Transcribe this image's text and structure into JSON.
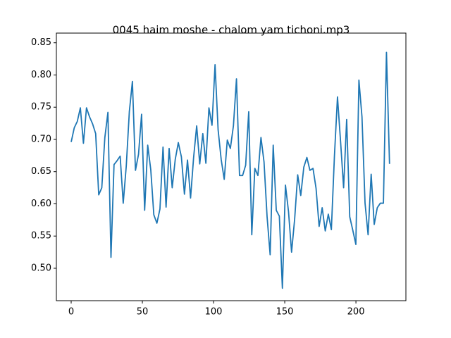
{
  "chart_data": {
    "type": "line",
    "title": "0045 haim moshe - chalom yam tichoni.mp3",
    "x": [
      0,
      2.15,
      4.3,
      6.45,
      8.6,
      10.75,
      12.9,
      15.05,
      17.2,
      19.35,
      21.5,
      23.65,
      25.8,
      27.95,
      30.1,
      32.25,
      34.4,
      36.55,
      38.7,
      40.85,
      43,
      45.15,
      47.3,
      49.45,
      51.6,
      53.75,
      55.9,
      58.05,
      60.2,
      62.35,
      64.5,
      66.65,
      68.8,
      70.95,
      73.1,
      75.25,
      77.4,
      79.55,
      81.7,
      83.85,
      86,
      88.15,
      90.3,
      92.45,
      94.6,
      96.75,
      98.9,
      101.05,
      103.2,
      105.35,
      107.5,
      109.65,
      111.8,
      113.95,
      116.1,
      118.25,
      120.4,
      122.55,
      124.7,
      126.85,
      129,
      131.15,
      133.3,
      135.45,
      137.6,
      139.75,
      141.9,
      144.05,
      146.2,
      148.35,
      150.5,
      152.65,
      154.8,
      156.95,
      159.1,
      161.25,
      163.4,
      165.55,
      167.7,
      169.85,
      172,
      174.15,
      176.3,
      178.45,
      180.6,
      182.75,
      184.9,
      187.05,
      189.2,
      191.35,
      193.5,
      195.65,
      197.8,
      199.95,
      202.1,
      204.25,
      206.4,
      208.55,
      210.7,
      212.85,
      215,
      217.15,
      219.3,
      221.45,
      223.6
    ],
    "series": [
      {
        "color": "#1f77b4",
        "values": [
          0.696,
          0.718,
          0.728,
          0.749,
          0.694,
          0.749,
          0.735,
          0.724,
          0.709,
          0.614,
          0.625,
          0.703,
          0.742,
          0.517,
          0.661,
          0.667,
          0.674,
          0.601,
          0.659,
          0.743,
          0.79,
          0.652,
          0.677,
          0.739,
          0.59,
          0.691,
          0.653,
          0.583,
          0.57,
          0.592,
          0.688,
          0.595,
          0.686,
          0.625,
          0.669,
          0.695,
          0.673,
          0.615,
          0.668,
          0.609,
          0.672,
          0.721,
          0.662,
          0.709,
          0.663,
          0.749,
          0.722,
          0.816,
          0.715,
          0.669,
          0.638,
          0.699,
          0.686,
          0.721,
          0.794,
          0.644,
          0.644,
          0.66,
          0.743,
          0.552,
          0.655,
          0.644,
          0.703,
          0.665,
          0.58,
          0.521,
          0.691,
          0.59,
          0.581,
          0.469,
          0.629,
          0.588,
          0.525,
          0.576,
          0.645,
          0.613,
          0.657,
          0.672,
          0.652,
          0.655,
          0.624,
          0.565,
          0.594,
          0.558,
          0.584,
          0.56,
          0.674,
          0.766,
          0.697,
          0.625,
          0.731,
          0.58,
          0.559,
          0.537,
          0.792,
          0.735,
          0.601,
          0.552,
          0.646,
          0.568,
          0.594,
          0.601,
          0.601,
          0.835,
          0.662
        ]
      }
    ],
    "xlim": [
      -10.4,
      235.1
    ],
    "xticks": [
      0,
      50,
      100,
      150,
      200
    ],
    "ylim": [
      0.4497,
      0.865
    ],
    "yticks": [
      {
        "value": 0.5,
        "label": "0.50"
      },
      0.55,
      {
        "value": 0.6,
        "label": "0.60"
      },
      0.65,
      {
        "value": 0.7,
        "label": "0.70"
      },
      0.75,
      {
        "value": 0.8,
        "label": "0.80"
      },
      0.85
    ]
  }
}
